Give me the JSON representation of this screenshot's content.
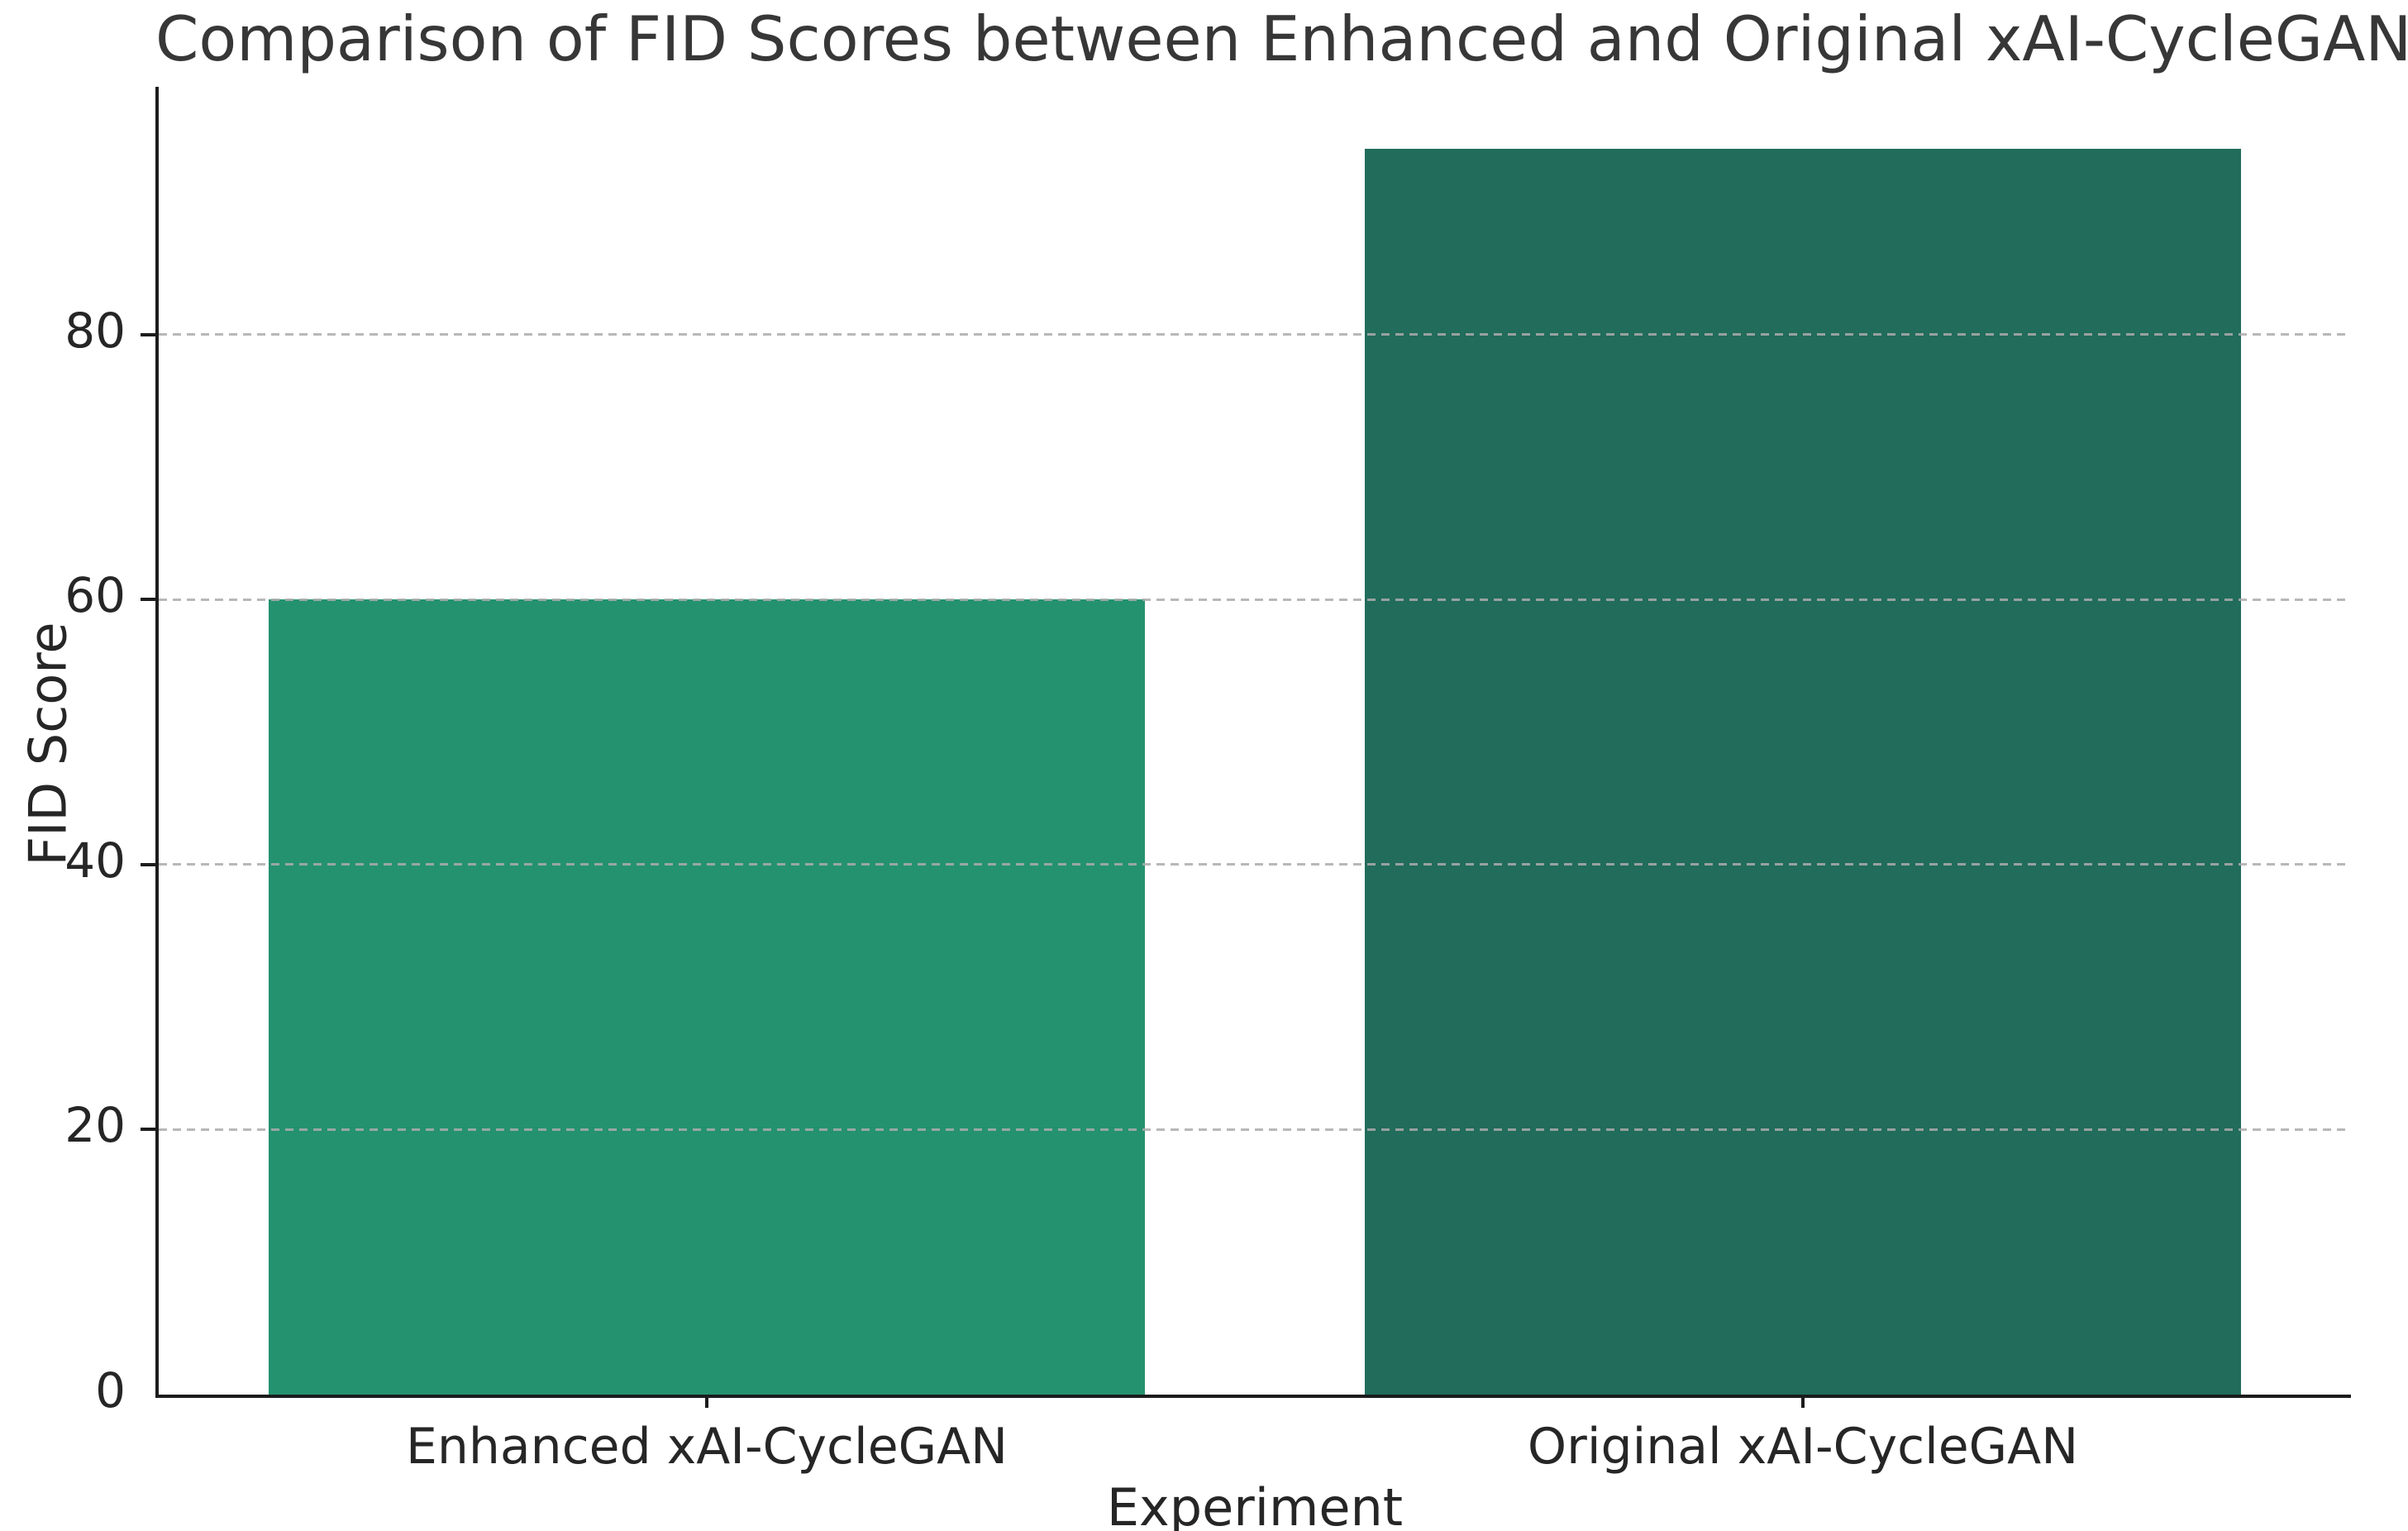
{
  "figure": {
    "title": "Comparison of FID Scores between Enhanced and Original xAI-CycleGAN"
  },
  "chart_data": {
    "type": "bar",
    "title": "Comparison of FID Scores between Enhanced and Original xAI-CycleGAN",
    "categories": [
      "Enhanced xAI-CycleGAN",
      "Original xAI-CycleGAN"
    ],
    "values": [
      60,
      94
    ],
    "xlabel": "Experiment",
    "ylabel": "FID Score",
    "ylim": [
      0,
      98.7
    ],
    "yticks": [
      0,
      20,
      40,
      60,
      80
    ],
    "bar_width_fraction": 0.8,
    "bar_colors": [
      "#24926F",
      "#216C5B"
    ],
    "grid": {
      "axis": "y",
      "style": "dashed",
      "color": "#acacac",
      "drawn_over_bars": true
    },
    "legend_position": null,
    "spines": {
      "left": true,
      "bottom": true,
      "top": false,
      "right": false,
      "color": "#1c1c1c"
    }
  }
}
